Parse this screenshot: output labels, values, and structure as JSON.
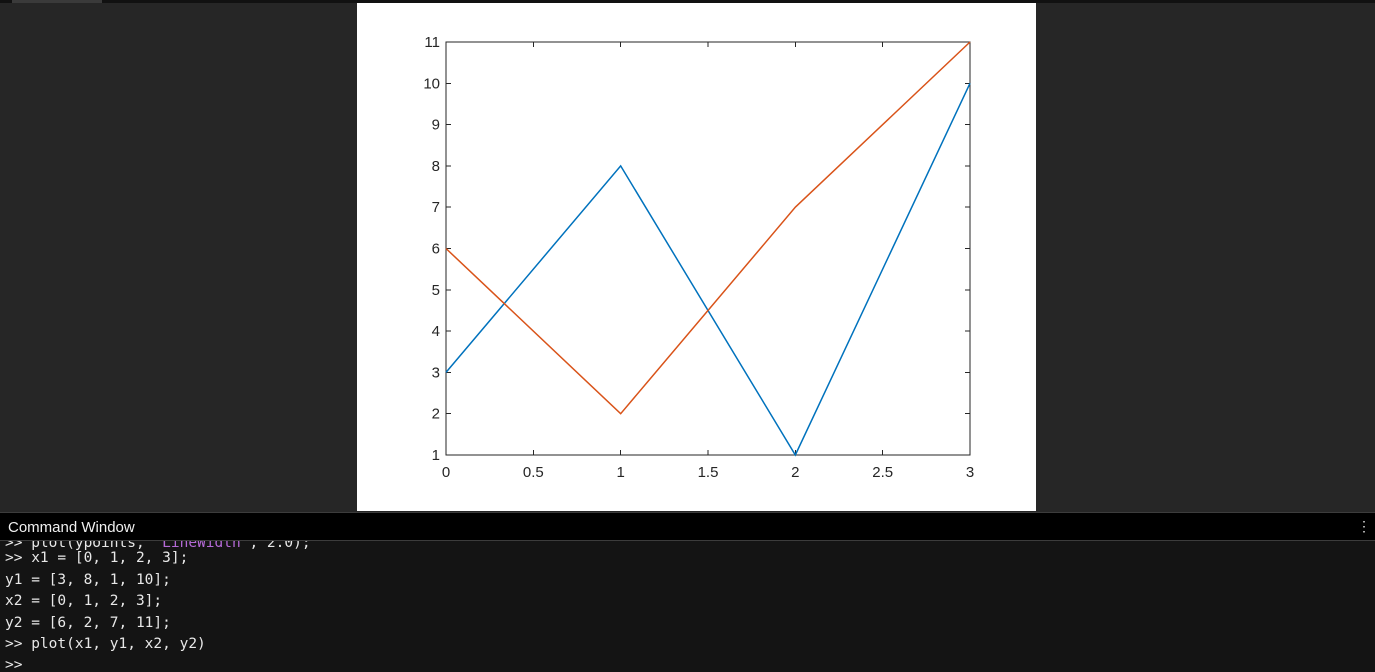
{
  "command_window": {
    "title": "Command Window",
    "menu_icon": "vertical-ellipsis-icon",
    "partial_line": {
      "code": ">> plot(ypoints, ",
      "string": "'LineWidth'",
      "rest": ", 2.0);"
    },
    "lines": [
      ">> x1 = [0, 1, 2, 3];",
      "y1 = [3, 8, 1, 10];",
      "x2 = [0, 1, 2, 3];",
      "y2 = [6, 2, 7, 11];",
      ">> plot(x1, y1, x2, y2)",
      ">>"
    ]
  },
  "chart_data": {
    "type": "line",
    "title": "",
    "xlabel": "",
    "ylabel": "",
    "xlim": [
      0,
      3
    ],
    "ylim": [
      1,
      11
    ],
    "xticks": [
      "0",
      "0.5",
      "1",
      "1.5",
      "2",
      "2.5",
      "3"
    ],
    "yticks": [
      "1",
      "2",
      "3",
      "4",
      "5",
      "6",
      "7",
      "8",
      "9",
      "10",
      "11"
    ],
    "grid": false,
    "series": [
      {
        "x": [
          0,
          1,
          2,
          3
        ],
        "values": [
          3,
          8,
          1,
          10
        ],
        "color": "#0072BD"
      },
      {
        "x": [
          0,
          1,
          2,
          3
        ],
        "values": [
          6,
          2,
          7,
          11
        ],
        "color": "#D95319"
      }
    ]
  }
}
